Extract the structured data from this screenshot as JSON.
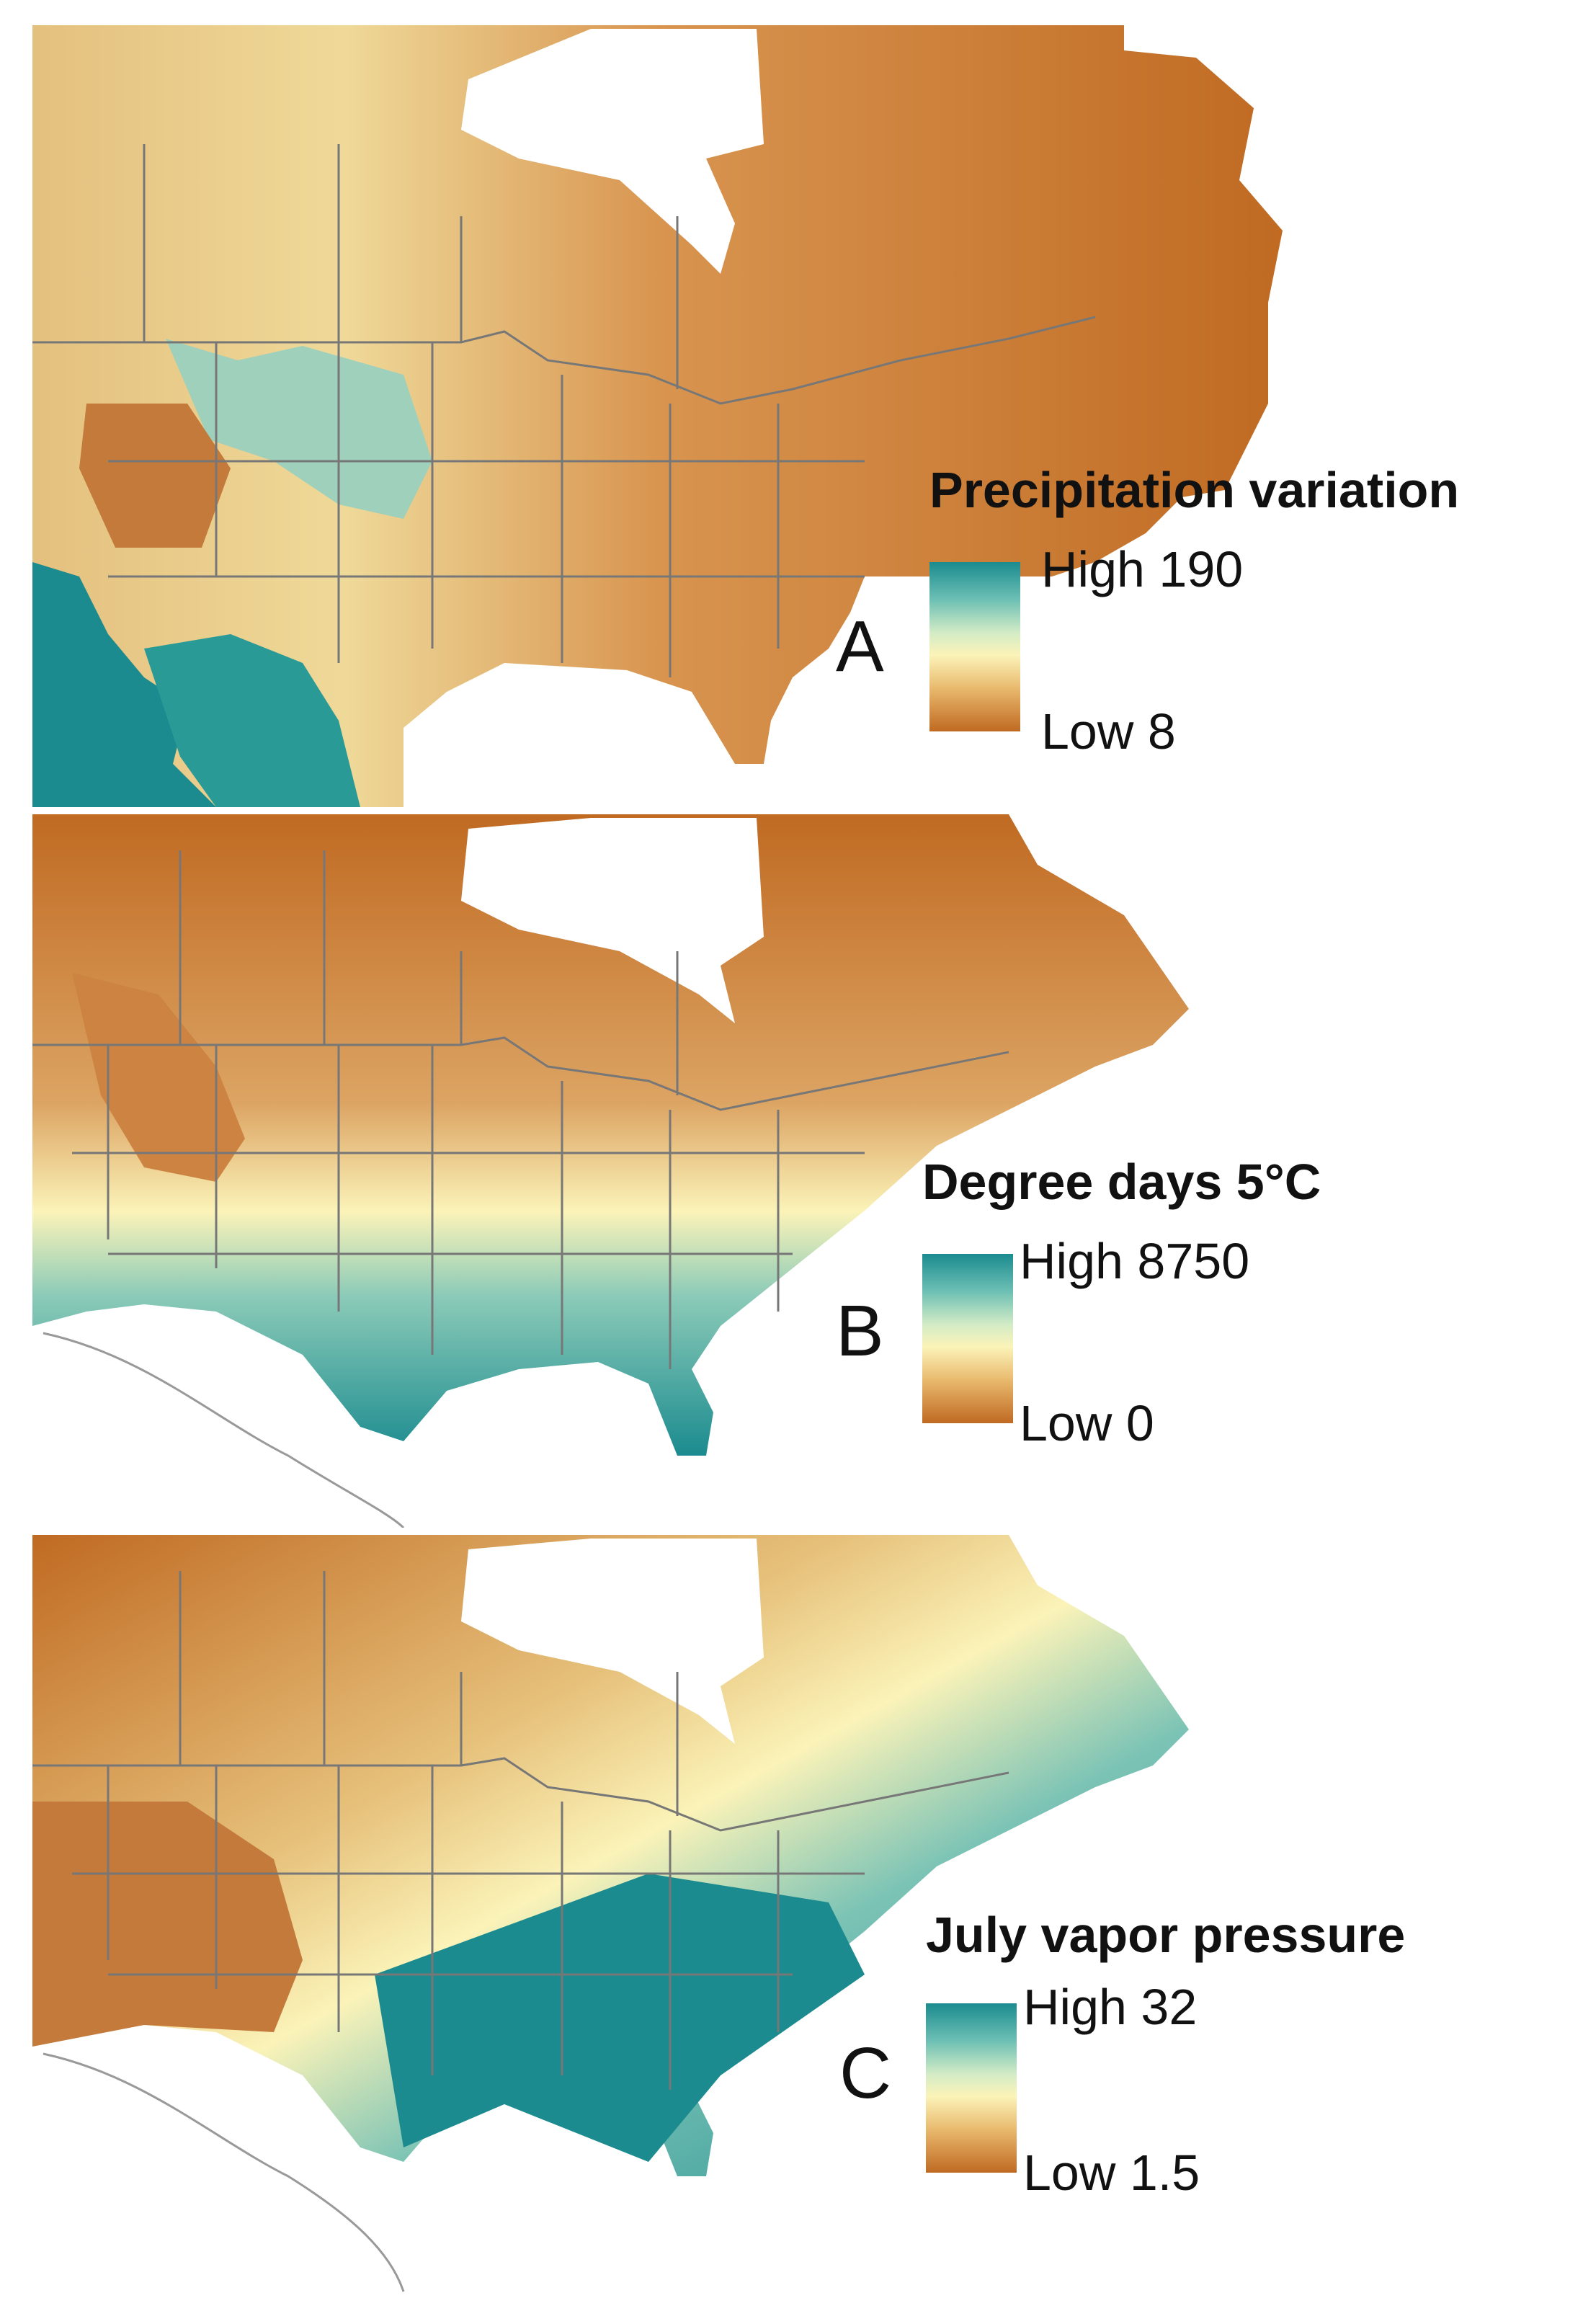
{
  "palette": {
    "high": "#1b8b8f",
    "mid": "#fbf3b8",
    "low": "#c06a22",
    "boundary": "#777777",
    "water": "#ffffff"
  },
  "panels": [
    {
      "letter": "A",
      "title": "Precipitation variation",
      "high_label": "High 190",
      "low_label": "Low 8"
    },
    {
      "letter": "B",
      "title": "Degree days 5°C",
      "high_label": "High 8750",
      "low_label": "Low 0"
    },
    {
      "letter": "C",
      "title": "July vapor pressure",
      "high_label": "High 32",
      "low_label": "Low 1.5"
    }
  ]
}
